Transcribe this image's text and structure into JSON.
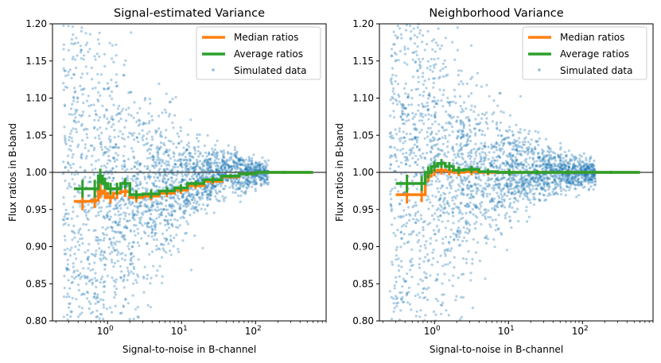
{
  "chart_data": [
    {
      "type": "scatter",
      "title": "Signal-estimated Variance",
      "xlabel": "Signal-to-noise in B-channel",
      "ylabel": "Flux ratios in B-band",
      "xscale": "log",
      "xlim": [
        0.18,
        900
      ],
      "ylim": [
        0.8,
        1.2
      ],
      "xticks": [
        {
          "base": "10",
          "exp": "0",
          "value": 1
        },
        {
          "base": "10",
          "exp": "1",
          "value": 10
        },
        {
          "base": "10",
          "exp": "2",
          "value": 100
        }
      ],
      "yticks": [
        "0.80",
        "0.85",
        "0.90",
        "0.95",
        "1.00",
        "1.05",
        "1.10",
        "1.15",
        "1.20"
      ],
      "reference_line": 1.0,
      "legend": {
        "position": "top-right",
        "entries": [
          "Median ratios",
          "Average ratios",
          "Simulated data"
        ]
      },
      "colors": {
        "median": "#ff7f0e",
        "average": "#2ca02c",
        "scatter": "#1f77b4",
        "refline": "#555555"
      },
      "scatter_model": {
        "n_points": 2600,
        "x_range": [
          0.25,
          150
        ],
        "center_low_snr": 0.94,
        "center_high_snr": 1.0,
        "spread_at_snr1": 0.12
      },
      "series": [
        {
          "name": "Median ratios",
          "x": [
            0.35,
            0.6,
            0.75,
            0.85,
            1.0,
            1.2,
            1.5,
            2.0,
            3.0,
            5.0,
            8.0,
            12,
            20,
            35,
            60,
            100,
            600
          ],
          "y": [
            0.961,
            0.962,
            0.975,
            0.972,
            0.966,
            0.972,
            0.974,
            0.966,
            0.968,
            0.972,
            0.976,
            0.982,
            0.988,
            0.994,
            0.998,
            1.0,
            1.0
          ],
          "err": [
            0.012,
            0.01,
            0.01,
            0.008,
            0.008,
            0.008,
            0.007,
            0.006,
            0.006,
            0.005,
            0.005,
            0.004,
            0.004,
            0.003,
            0.003,
            0.002,
            0.0
          ]
        },
        {
          "name": "Average ratios",
          "x": [
            0.35,
            0.6,
            0.75,
            0.85,
            1.0,
            1.2,
            1.5,
            2.0,
            3.0,
            5.0,
            8.0,
            12,
            20,
            35,
            60,
            100,
            600
          ],
          "y": [
            0.978,
            0.978,
            0.995,
            0.985,
            0.978,
            0.978,
            0.985,
            0.97,
            0.971,
            0.975,
            0.979,
            0.985,
            0.99,
            0.995,
            0.998,
            1.0,
            1.0
          ],
          "err": [
            0.012,
            0.012,
            0.01,
            0.008,
            0.008,
            0.008,
            0.007,
            0.006,
            0.006,
            0.005,
            0.005,
            0.004,
            0.004,
            0.003,
            0.003,
            0.002,
            0.0
          ]
        }
      ]
    },
    {
      "type": "scatter",
      "title": "Neighborhood Variance",
      "xlabel": "Signal-to-noise in B-channel",
      "ylabel": "Flux ratios in B-band",
      "xscale": "log",
      "xlim": [
        0.18,
        900
      ],
      "ylim": [
        0.8,
        1.2
      ],
      "xticks": [
        {
          "base": "10",
          "exp": "0",
          "value": 1
        },
        {
          "base": "10",
          "exp": "1",
          "value": 10
        },
        {
          "base": "10",
          "exp": "2",
          "value": 100
        }
      ],
      "yticks": [
        "0.80",
        "0.85",
        "0.90",
        "0.95",
        "1.00",
        "1.05",
        "1.10",
        "1.15",
        "1.20"
      ],
      "reference_line": 1.0,
      "legend": {
        "position": "top-right",
        "entries": [
          "Median ratios",
          "Average ratios",
          "Simulated data"
        ]
      },
      "colors": {
        "median": "#ff7f0e",
        "average": "#2ca02c",
        "scatter": "#1f77b4",
        "refline": "#555555"
      },
      "scatter_model": {
        "n_points": 2600,
        "x_range": [
          0.25,
          150
        ],
        "center_low_snr": 0.995,
        "center_high_snr": 1.0,
        "spread_at_snr1": 0.12
      },
      "series": [
        {
          "name": "Median ratios",
          "x": [
            0.3,
            0.6,
            0.75,
            0.9,
            1.1,
            1.4,
            1.8,
            2.5,
            4.0,
            7.0,
            15,
            40,
            100,
            600
          ],
          "y": [
            0.97,
            0.97,
            0.995,
            1.002,
            1.003,
            1.002,
            1.0,
            1.001,
            1.0,
            1.0,
            1.0,
            1.0,
            1.0,
            1.0
          ],
          "err": [
            0.012,
            0.01,
            0.008,
            0.007,
            0.006,
            0.006,
            0.005,
            0.005,
            0.004,
            0.004,
            0.003,
            0.003,
            0.002,
            0.0
          ]
        },
        {
          "name": "Average ratios",
          "x": [
            0.3,
            0.6,
            0.75,
            0.9,
            1.1,
            1.4,
            1.8,
            2.5,
            4.0,
            7.0,
            15,
            40,
            100,
            600
          ],
          "y": [
            0.985,
            0.985,
            1.0,
            1.008,
            1.012,
            1.008,
            1.003,
            1.004,
            1.001,
            1.0,
            1.0,
            1.0,
            1.0,
            1.0
          ],
          "err": [
            0.012,
            0.01,
            0.008,
            0.007,
            0.006,
            0.006,
            0.005,
            0.005,
            0.004,
            0.004,
            0.003,
            0.003,
            0.002,
            0.0
          ]
        }
      ]
    }
  ]
}
